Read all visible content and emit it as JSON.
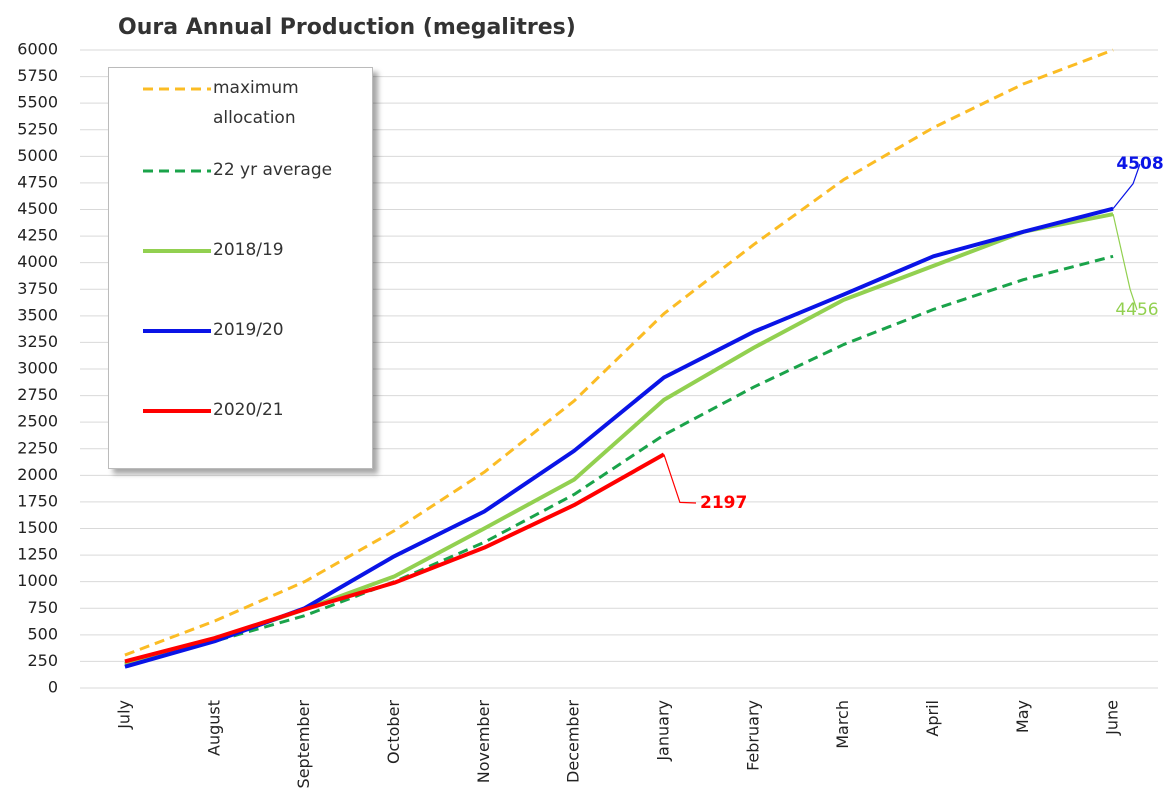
{
  "chart_data": {
    "type": "line",
    "title": "Oura Annual Production (megalitres)",
    "categories": [
      "July",
      "August",
      "September",
      "October",
      "November",
      "December",
      "January",
      "February",
      "March",
      "April",
      "May",
      "June"
    ],
    "series": [
      {
        "name": "maximum allocation",
        "color": "#fbbc24",
        "dashed": true,
        "values": [
          310,
          630,
          1000,
          1480,
          2030,
          2700,
          3520,
          4170,
          4780,
          5270,
          5680,
          6000
        ]
      },
      {
        "name": "22 yr average",
        "color": "#1aa34a",
        "dashed": true,
        "values": [
          230,
          440,
          680,
          1000,
          1370,
          1820,
          2380,
          2830,
          3230,
          3560,
          3840,
          4060
        ]
      },
      {
        "name": "2018/19",
        "color": "#92d050",
        "dashed": false,
        "values": [
          220,
          450,
          740,
          1050,
          1500,
          1960,
          2710,
          3200,
          3650,
          3970,
          4290,
          4456
        ]
      },
      {
        "name": "2019/20",
        "color": "#0a14e6",
        "dashed": false,
        "values": [
          200,
          440,
          750,
          1240,
          1660,
          2230,
          2920,
          3350,
          3700,
          4060,
          4290,
          4508
        ]
      },
      {
        "name": "2020/21",
        "color": "#ff0000",
        "dashed": false,
        "values": [
          250,
          470,
          740,
          990,
          1320,
          1720,
          2197,
          null,
          null,
          null,
          null,
          null
        ]
      }
    ],
    "ylim": [
      0,
      6000
    ],
    "yticks": [
      0,
      250,
      500,
      750,
      1000,
      1250,
      1500,
      1750,
      2000,
      2250,
      2500,
      2750,
      3000,
      3250,
      3500,
      3750,
      4000,
      4250,
      4500,
      4750,
      5000,
      5250,
      5500,
      5750,
      6000
    ],
    "grid": true
  }
}
